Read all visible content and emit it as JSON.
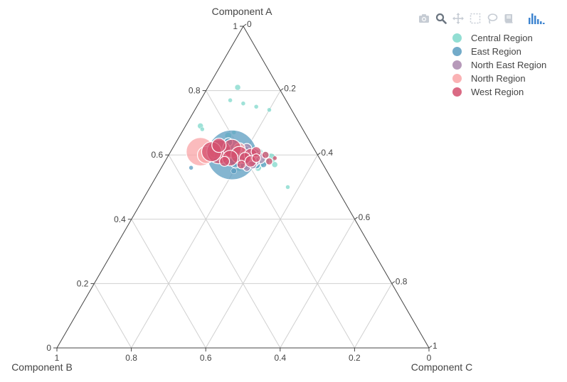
{
  "modebar": {
    "icons": [
      "camera-icon",
      "zoom-icon",
      "pan-icon",
      "box-select-icon",
      "lasso-icon",
      "book-icon",
      "plotly-logo-icon"
    ]
  },
  "chart_data": {
    "type": "scatter",
    "subtype": "ternary-bubble",
    "title": "",
    "axes": {
      "a": {
        "title": "Component A",
        "ticks": [
          "0",
          "0.2",
          "0.4",
          "0.6",
          "0.8",
          "1"
        ],
        "values": [
          0,
          0.2,
          0.4,
          0.6,
          0.8,
          1
        ]
      },
      "b": {
        "title": "Component B",
        "ticks": [
          "0",
          "0.2",
          "0.4",
          "0.6",
          "0.8",
          "1"
        ],
        "values": [
          0,
          0.2,
          0.4,
          0.6,
          0.8,
          1
        ]
      },
      "c": {
        "title": "Component C",
        "ticks": [
          "0",
          "0.2",
          "0.4",
          "0.6",
          "0.8",
          "1"
        ],
        "values": [
          0,
          0.2,
          0.4,
          0.6,
          0.8,
          1
        ]
      }
    },
    "grid": true,
    "legend_position": "top-right",
    "series": [
      {
        "name": "Central Region",
        "color": "#7fd8cb",
        "points": [
          {
            "a": 0.81,
            "b": 0.11,
            "c": 0.08,
            "size": 4
          },
          {
            "a": 0.77,
            "b": 0.15,
            "c": 0.08,
            "size": 3
          },
          {
            "a": 0.76,
            "b": 0.12,
            "c": 0.12,
            "size": 3
          },
          {
            "a": 0.75,
            "b": 0.09,
            "c": 0.16,
            "size": 3
          },
          {
            "a": 0.74,
            "b": 0.06,
            "c": 0.2,
            "size": 3
          },
          {
            "a": 0.69,
            "b": 0.27,
            "c": 0.04,
            "size": 4
          },
          {
            "a": 0.68,
            "b": 0.27,
            "c": 0.05,
            "size": 3
          },
          {
            "a": 0.67,
            "b": 0.19,
            "c": 0.14,
            "size": 3
          },
          {
            "a": 0.66,
            "b": 0.21,
            "c": 0.13,
            "size": 5
          },
          {
            "a": 0.63,
            "b": 0.2,
            "c": 0.17,
            "size": 4
          },
          {
            "a": 0.62,
            "b": 0.16,
            "c": 0.22,
            "size": 4
          },
          {
            "a": 0.61,
            "b": 0.15,
            "c": 0.24,
            "size": 4
          },
          {
            "a": 0.6,
            "b": 0.14,
            "c": 0.26,
            "size": 5
          },
          {
            "a": 0.59,
            "b": 0.13,
            "c": 0.28,
            "size": 7
          },
          {
            "a": 0.58,
            "b": 0.15,
            "c": 0.27,
            "size": 6
          },
          {
            "a": 0.57,
            "b": 0.17,
            "c": 0.26,
            "size": 6
          },
          {
            "a": 0.56,
            "b": 0.18,
            "c": 0.26,
            "size": 5
          },
          {
            "a": 0.57,
            "b": 0.13,
            "c": 0.3,
            "size": 4
          },
          {
            "a": 0.59,
            "b": 0.19,
            "c": 0.22,
            "size": 6
          },
          {
            "a": 0.56,
            "b": 0.21,
            "c": 0.23,
            "size": 4
          },
          {
            "a": 0.56,
            "b": 0.23,
            "c": 0.21,
            "size": 5
          },
          {
            "a": 0.5,
            "b": 0.13,
            "c": 0.37,
            "size": 3
          },
          {
            "a": 0.62,
            "b": 0.29,
            "c": 0.09,
            "size": 5
          }
        ]
      },
      {
        "name": "East Region",
        "color": "#5b9cc0",
        "points": [
          {
            "a": 0.6,
            "b": 0.23,
            "c": 0.17,
            "size": 35
          },
          {
            "a": 0.59,
            "b": 0.22,
            "c": 0.19,
            "size": 12
          },
          {
            "a": 0.58,
            "b": 0.23,
            "c": 0.19,
            "size": 9
          },
          {
            "a": 0.58,
            "b": 0.2,
            "c": 0.22,
            "size": 8
          },
          {
            "a": 0.57,
            "b": 0.21,
            "c": 0.22,
            "size": 7
          },
          {
            "a": 0.57,
            "b": 0.18,
            "c": 0.25,
            "size": 6
          },
          {
            "a": 0.57,
            "b": 0.16,
            "c": 0.27,
            "size": 4
          },
          {
            "a": 0.56,
            "b": 0.36,
            "c": 0.08,
            "size": 3
          },
          {
            "a": 0.55,
            "b": 0.25,
            "c": 0.2,
            "size": 4
          },
          {
            "a": 0.64,
            "b": 0.22,
            "c": 0.14,
            "size": 6
          },
          {
            "a": 0.61,
            "b": 0.19,
            "c": 0.2,
            "size": 8
          }
        ]
      },
      {
        "name": "North East Region",
        "color": "#a987ad",
        "points": [
          {
            "a": 0.6,
            "b": 0.17,
            "c": 0.23,
            "size": 9
          },
          {
            "a": 0.59,
            "b": 0.16,
            "c": 0.25,
            "size": 8
          },
          {
            "a": 0.58,
            "b": 0.18,
            "c": 0.24,
            "size": 7
          },
          {
            "a": 0.57,
            "b": 0.19,
            "c": 0.24,
            "size": 6
          },
          {
            "a": 0.62,
            "b": 0.18,
            "c": 0.2,
            "size": 7
          },
          {
            "a": 0.56,
            "b": 0.21,
            "c": 0.23,
            "size": 5
          }
        ]
      },
      {
        "name": "North Region",
        "color": "#f9a4a7",
        "points": [
          {
            "a": 0.61,
            "b": 0.31,
            "c": 0.08,
            "size": 20
          },
          {
            "a": 0.6,
            "b": 0.3,
            "c": 0.1,
            "size": 12
          },
          {
            "a": 0.61,
            "b": 0.27,
            "c": 0.12,
            "size": 9
          },
          {
            "a": 0.62,
            "b": 0.2,
            "c": 0.18,
            "size": 8
          },
          {
            "a": 0.59,
            "b": 0.26,
            "c": 0.15,
            "size": 7
          }
        ]
      },
      {
        "name": "West Region",
        "color": "#d4506f",
        "points": [
          {
            "a": 0.61,
            "b": 0.26,
            "c": 0.13,
            "size": 17
          },
          {
            "a": 0.61,
            "b": 0.28,
            "c": 0.11,
            "size": 14
          },
          {
            "a": 0.62,
            "b": 0.22,
            "c": 0.16,
            "size": 13
          },
          {
            "a": 0.6,
            "b": 0.21,
            "c": 0.19,
            "size": 12
          },
          {
            "a": 0.59,
            "b": 0.24,
            "c": 0.17,
            "size": 11
          },
          {
            "a": 0.63,
            "b": 0.25,
            "c": 0.12,
            "size": 10
          },
          {
            "a": 0.6,
            "b": 0.18,
            "c": 0.22,
            "size": 9
          },
          {
            "a": 0.59,
            "b": 0.2,
            "c": 0.21,
            "size": 8
          },
          {
            "a": 0.58,
            "b": 0.19,
            "c": 0.23,
            "size": 8
          },
          {
            "a": 0.61,
            "b": 0.16,
            "c": 0.23,
            "size": 7
          },
          {
            "a": 0.58,
            "b": 0.26,
            "c": 0.16,
            "size": 7
          },
          {
            "a": 0.59,
            "b": 0.17,
            "c": 0.24,
            "size": 6
          },
          {
            "a": 0.57,
            "b": 0.22,
            "c": 0.21,
            "size": 6
          },
          {
            "a": 0.6,
            "b": 0.14,
            "c": 0.26,
            "size": 5
          },
          {
            "a": 0.58,
            "b": 0.14,
            "c": 0.28,
            "size": 5
          },
          {
            "a": 0.59,
            "b": 0.12,
            "c": 0.29,
            "size": 3
          }
        ]
      }
    ]
  }
}
